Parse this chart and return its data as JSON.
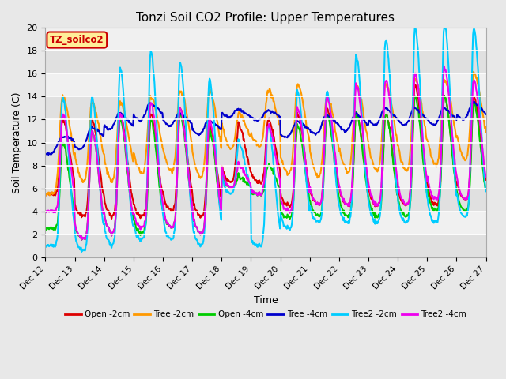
{
  "title": "Tonzi Soil CO2 Profile: Upper Temperatures",
  "xlabel": "Time",
  "ylabel": "Soil Temperature (C)",
  "ylim": [
    0,
    20
  ],
  "annotation": "TZ_soilco2",
  "annotation_color": "#cc0000",
  "annotation_bg": "#ffee99",
  "background_color": "#e8e8e8",
  "plot_bg": "#f0f0f0",
  "series": [
    {
      "label": "Open -2cm",
      "color": "#dd0000",
      "lw": 1.5
    },
    {
      "label": "Tree -2cm",
      "color": "#ff9900",
      "lw": 1.5
    },
    {
      "label": "Open -4cm",
      "color": "#00cc00",
      "lw": 1.5
    },
    {
      "label": "Tree -4cm",
      "color": "#0000cc",
      "lw": 1.5
    },
    {
      "label": "Tree2 -2cm",
      "color": "#00ccff",
      "lw": 1.5
    },
    {
      "label": "Tree2 -4cm",
      "color": "#ee00ee",
      "lw": 1.5
    }
  ],
  "xtick_labels": [
    "Dec 12",
    "Dec 13",
    "Dec 14",
    "Dec 15",
    "Dec 16",
    "Dec 17",
    "Dec 18",
    "Dec 19",
    "Dec 20",
    "Dec 21",
    "Dec 22",
    "Dec 23",
    "Dec 24",
    "Dec 25",
    "Dec 26",
    "Dec 27"
  ],
  "xtick_positions": [
    0,
    24,
    48,
    72,
    96,
    120,
    144,
    168,
    192,
    216,
    240,
    264,
    288,
    312,
    336,
    360
  ],
  "yticks": [
    0,
    2,
    4,
    6,
    8,
    10,
    12,
    14,
    16,
    18,
    20
  ]
}
